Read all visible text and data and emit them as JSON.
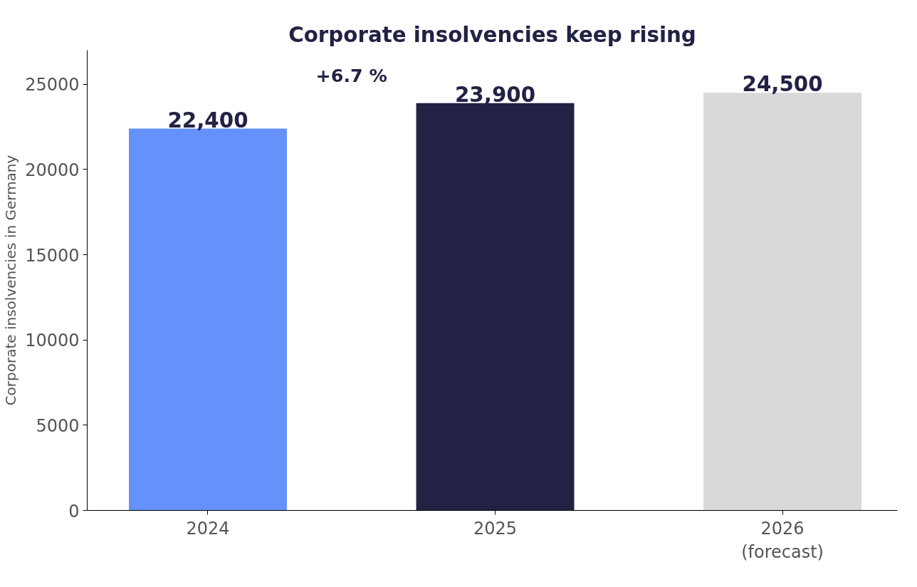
{
  "chart_data": {
    "type": "bar",
    "title": "Corporate insolvencies keep rising",
    "ylabel": "Corporate insolvencies in Germany",
    "categories": [
      "2024",
      "2025",
      "2026\n(forecast)"
    ],
    "values": [
      22400,
      23900,
      24500
    ],
    "colors": [
      "#6591fa",
      "#222244",
      "#d9d9d9"
    ],
    "value_labels": [
      "22,400",
      "23,900",
      "24,500"
    ],
    "annotations": [
      "+6.7 %"
    ],
    "ylim": [
      0,
      27000
    ],
    "yticks": [
      0,
      5000,
      10000,
      15000,
      20000,
      25000
    ],
    "grid": false
  }
}
